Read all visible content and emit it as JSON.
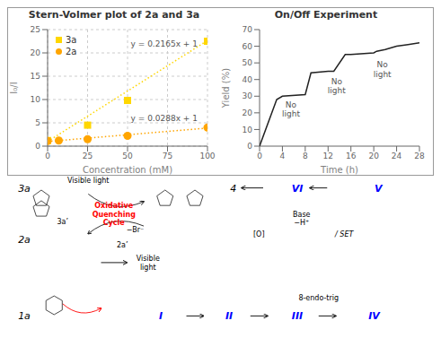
{
  "chart_data": [
    {
      "type": "scatter",
      "title": "Stern-Volmer plot of 2a and 3a",
      "x_label": "Concentration (mM)",
      "y_label": "I₀/I",
      "xlim": [
        0,
        100
      ],
      "ylim": [
        0,
        25
      ],
      "xticks": [
        0,
        25,
        50,
        75,
        100
      ],
      "yticks": [
        0,
        5,
        10,
        15,
        20,
        25
      ],
      "grid": true,
      "legend": "upper left",
      "series": [
        {
          "type": "line",
          "line_style": "dotted",
          "color": "#FFD700",
          "x": [
            0,
            100
          ],
          "values": [
            1,
            22.65
          ]
        },
        {
          "type": "line",
          "line_style": "dotted",
          "color": "#FFA500",
          "x": [
            0,
            100
          ],
          "values": [
            1,
            3.88
          ]
        },
        {
          "name": "3a",
          "color": "#FFD700",
          "marker": "square",
          "x": [
            0,
            25,
            50,
            100
          ],
          "values": [
            1.2,
            4.5,
            9.8,
            22.5
          ]
        },
        {
          "name": "2a",
          "color": "#FFA500",
          "marker": "circle",
          "x": [
            0,
            7,
            25,
            50,
            100
          ],
          "values": [
            1.1,
            1.2,
            1.5,
            2.2,
            4.0
          ]
        }
      ],
      "annotations": [
        {
          "text": "y = 0.2165x + 1",
          "x": 52,
          "y": 22
        },
        {
          "text": "y = 0.0288x + 1",
          "x": 52,
          "y": 6.0
        }
      ]
    },
    {
      "type": "line",
      "title": "On/Off Experiment",
      "x_label": "Time (h)",
      "y_label": "Yield (%)",
      "xlim": [
        0,
        28
      ],
      "ylim": [
        0,
        70
      ],
      "xticks": [
        0,
        4,
        8,
        12,
        16,
        20,
        24,
        28
      ],
      "yticks": [
        0,
        10,
        20,
        30,
        40,
        50,
        60,
        70
      ],
      "grid": false,
      "series": [
        {
          "color": "#222222",
          "line_style": "solid",
          "x": [
            0,
            3,
            4,
            8,
            9,
            12,
            13,
            15,
            16,
            20,
            20.5,
            22,
            24,
            26,
            28
          ],
          "values": [
            0,
            28,
            30,
            31,
            44,
            45,
            45,
            55,
            55,
            56,
            57,
            58,
            60,
            61,
            62
          ]
        }
      ],
      "annotations": [
        {
          "text": "No\nlight",
          "x": 5.5,
          "y": 22
        },
        {
          "text": "No\nlight",
          "x": 13.5,
          "y": 36
        },
        {
          "text": "No\nlight",
          "x": 21.5,
          "y": 46
        }
      ]
    },
    {
      "type": "diagram",
      "annotations": [
        {
          "text": "3a",
          "color": "black"
        },
        {
          "text": "2a",
          "color": "black"
        },
        {
          "text": "1a",
          "color": "black"
        },
        {
          "text": "4",
          "color": "black"
        },
        {
          "text": "VI",
          "color": "blue"
        },
        {
          "text": "V",
          "color": "blue"
        },
        {
          "text": "I",
          "color": "blue"
        },
        {
          "text": "II",
          "color": "blue"
        },
        {
          "text": "III",
          "color": "blue"
        },
        {
          "text": "IV",
          "color": "blue"
        },
        {
          "text": "Visible light",
          "color": "black"
        },
        {
          "text": "Oxidative\nQuenching\nCycle",
          "color": "red"
        },
        {
          "text": "3a’",
          "color": "black"
        },
        {
          "text": "2a’",
          "color": "black"
        },
        {
          "text": "Visible\nlight",
          "color": "black"
        },
        {
          "text": "−Br⁻",
          "color": "black"
        },
        {
          "text": "/ SET",
          "color": "black"
        },
        {
          "text": "Base\n−H⁺",
          "color": "black"
        },
        {
          "text": "[O]",
          "color": "black"
        },
        {
          "text": "8-endo-trig",
          "color": "black"
        }
      ]
    }
  ]
}
